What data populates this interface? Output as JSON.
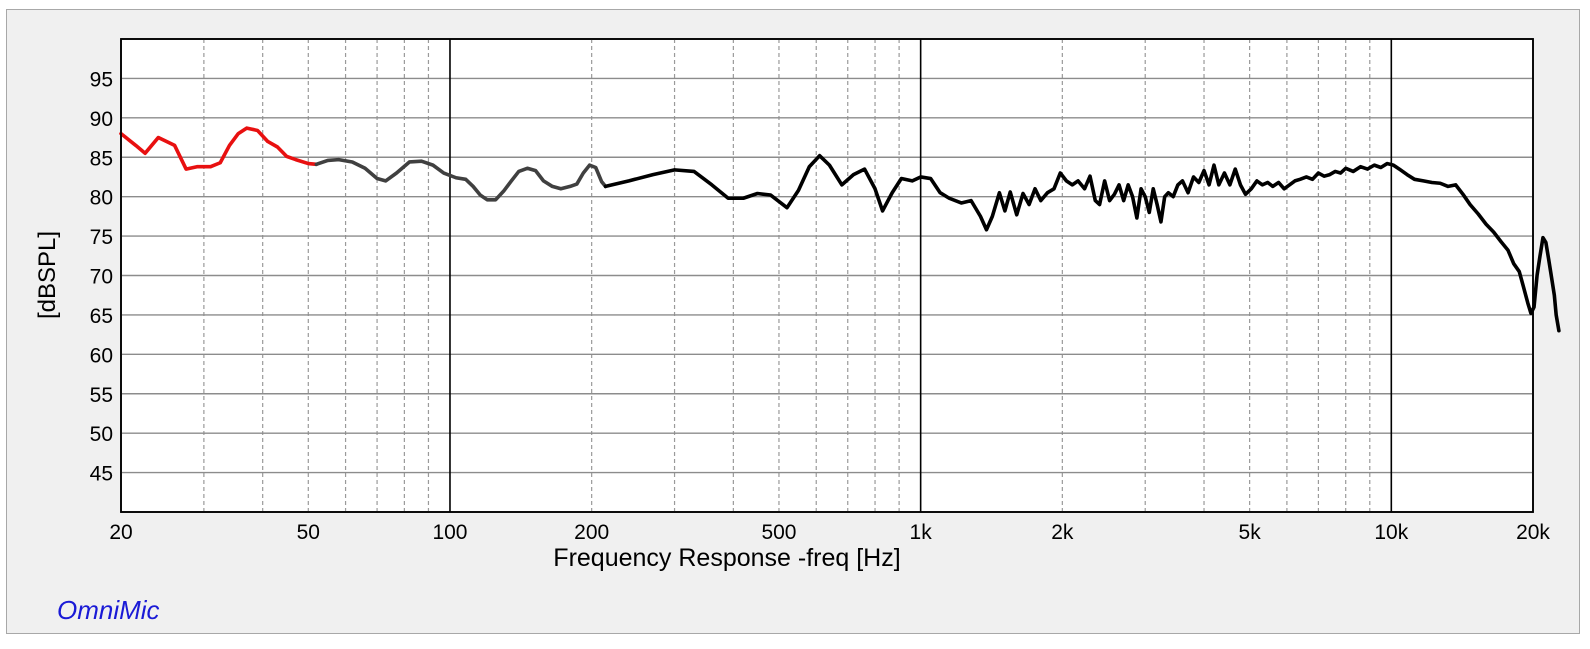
{
  "chart_data": {
    "type": "line",
    "title": "",
    "xlabel": "Frequency Response -freq [Hz]",
    "ylabel": "[dBSPL]",
    "x_scale": "log",
    "xlim": [
      20,
      20000
    ],
    "ylim": [
      40,
      100
    ],
    "x_ticks": [
      {
        "value": 20,
        "label": "20"
      },
      {
        "value": 50,
        "label": "50"
      },
      {
        "value": 100,
        "label": "100"
      },
      {
        "value": 200,
        "label": "200"
      },
      {
        "value": 500,
        "label": "500"
      },
      {
        "value": 1000,
        "label": "1k"
      },
      {
        "value": 2000,
        "label": "2k"
      },
      {
        "value": 5000,
        "label": "5k"
      },
      {
        "value": 10000,
        "label": "10k"
      },
      {
        "value": 20000,
        "label": "20k"
      }
    ],
    "y_ticks": [
      45,
      50,
      55,
      60,
      65,
      70,
      75,
      80,
      85,
      90,
      95
    ],
    "grid": true,
    "series": [
      {
        "color": "#e81010",
        "points": [
          [
            20,
            88
          ],
          [
            21.5,
            86.5
          ],
          [
            22.5,
            85.5
          ],
          [
            24,
            87.5
          ],
          [
            26,
            86.5
          ],
          [
            27.5,
            83.5
          ],
          [
            29,
            83.8
          ],
          [
            31,
            83.8
          ],
          [
            32.5,
            84.3
          ],
          [
            34,
            86.5
          ],
          [
            35.5,
            88
          ],
          [
            37,
            88.7
          ],
          [
            39,
            88.4
          ],
          [
            41,
            87
          ],
          [
            43,
            86.3
          ],
          [
            45,
            85.1
          ],
          [
            47,
            84.7
          ],
          [
            50,
            84.2
          ],
          [
            52,
            84.1
          ]
        ]
      },
      {
        "color": "#404040",
        "points": [
          [
            52,
            84.1
          ],
          [
            55,
            84.6
          ],
          [
            58,
            84.7
          ],
          [
            62,
            84.4
          ],
          [
            66,
            83.6
          ],
          [
            70,
            82.3
          ],
          [
            73,
            82
          ],
          [
            77,
            83
          ],
          [
            82,
            84.4
          ],
          [
            87,
            84.5
          ],
          [
            92,
            84
          ],
          [
            97,
            83
          ],
          [
            103,
            82.4
          ],
          [
            108,
            82.2
          ],
          [
            112,
            81.3
          ],
          [
            116,
            80.2
          ],
          [
            120,
            79.6
          ],
          [
            125,
            79.6
          ],
          [
            130,
            80.7
          ],
          [
            135,
            82
          ],
          [
            140,
            83.2
          ],
          [
            146,
            83.6
          ],
          [
            152,
            83.3
          ],
          [
            158,
            82
          ],
          [
            165,
            81.3
          ],
          [
            172,
            81
          ],
          [
            180,
            81.3
          ],
          [
            186,
            81.6
          ],
          [
            192,
            83
          ],
          [
            198,
            84
          ],
          [
            204,
            83.7
          ],
          [
            210,
            81.9
          ],
          [
            214,
            81.3
          ]
        ]
      },
      {
        "color": "#000000",
        "points": [
          [
            214,
            81.3
          ],
          [
            240,
            82
          ],
          [
            270,
            82.8
          ],
          [
            300,
            83.4
          ],
          [
            330,
            83.2
          ],
          [
            360,
            81.5
          ],
          [
            390,
            79.8
          ],
          [
            420,
            79.8
          ],
          [
            450,
            80.4
          ],
          [
            480,
            80.2
          ],
          [
            520,
            78.6
          ],
          [
            550,
            80.8
          ],
          [
            580,
            83.8
          ],
          [
            610,
            85.2
          ],
          [
            640,
            84
          ],
          [
            680,
            81.5
          ],
          [
            720,
            82.8
          ],
          [
            760,
            83.5
          ],
          [
            800,
            81
          ],
          [
            830,
            78.2
          ],
          [
            870,
            80.5
          ],
          [
            910,
            82.3
          ],
          [
            960,
            82
          ],
          [
            1000,
            82.5
          ],
          [
            1050,
            82.3
          ],
          [
            1100,
            80.5
          ],
          [
            1150,
            79.8
          ],
          [
            1220,
            79.2
          ],
          [
            1280,
            79.5
          ],
          [
            1340,
            77.5
          ],
          [
            1380,
            75.8
          ],
          [
            1420,
            77.5
          ],
          [
            1470,
            80.5
          ],
          [
            1510,
            78.2
          ],
          [
            1550,
            80.6
          ],
          [
            1600,
            77.7
          ],
          [
            1650,
            80.4
          ],
          [
            1700,
            79
          ],
          [
            1750,
            81
          ],
          [
            1800,
            79.5
          ],
          [
            1860,
            80.5
          ],
          [
            1920,
            81
          ],
          [
            1980,
            83
          ],
          [
            2040,
            82
          ],
          [
            2100,
            81.5
          ],
          [
            2160,
            82
          ],
          [
            2230,
            81
          ],
          [
            2290,
            82.6
          ],
          [
            2350,
            79.5
          ],
          [
            2400,
            79
          ],
          [
            2460,
            82
          ],
          [
            2520,
            79.5
          ],
          [
            2580,
            80.3
          ],
          [
            2640,
            81.5
          ],
          [
            2700,
            79.5
          ],
          [
            2760,
            81.5
          ],
          [
            2820,
            80
          ],
          [
            2880,
            77.3
          ],
          [
            2940,
            81
          ],
          [
            3000,
            80
          ],
          [
            3060,
            78
          ],
          [
            3120,
            81
          ],
          [
            3180,
            79
          ],
          [
            3240,
            76.8
          ],
          [
            3300,
            80
          ],
          [
            3360,
            80.5
          ],
          [
            3440,
            80
          ],
          [
            3520,
            81.5
          ],
          [
            3600,
            82
          ],
          [
            3700,
            80.5
          ],
          [
            3800,
            82.5
          ],
          [
            3900,
            81.8
          ],
          [
            4000,
            83.3
          ],
          [
            4100,
            81.5
          ],
          [
            4200,
            84
          ],
          [
            4300,
            81.5
          ],
          [
            4420,
            83
          ],
          [
            4540,
            81.5
          ],
          [
            4660,
            83.5
          ],
          [
            4780,
            81.5
          ],
          [
            4900,
            80.3
          ],
          [
            5040,
            81
          ],
          [
            5180,
            82
          ],
          [
            5320,
            81.5
          ],
          [
            5460,
            81.8
          ],
          [
            5600,
            81.3
          ],
          [
            5760,
            81.8
          ],
          [
            5920,
            81
          ],
          [
            6080,
            81.5
          ],
          [
            6240,
            82
          ],
          [
            6400,
            82.2
          ],
          [
            6600,
            82.5
          ],
          [
            6800,
            82.2
          ],
          [
            7000,
            83
          ],
          [
            7200,
            82.6
          ],
          [
            7400,
            82.8
          ],
          [
            7600,
            83.2
          ],
          [
            7800,
            83
          ],
          [
            8000,
            83.6
          ],
          [
            8300,
            83.2
          ],
          [
            8600,
            83.8
          ],
          [
            8900,
            83.5
          ],
          [
            9200,
            84
          ],
          [
            9500,
            83.7
          ],
          [
            9800,
            84.2
          ],
          [
            10100,
            84
          ],
          [
            10400,
            83.5
          ],
          [
            10800,
            82.8
          ],
          [
            11200,
            82.2
          ],
          [
            11700,
            82
          ],
          [
            12200,
            81.8
          ],
          [
            12700,
            81.7
          ],
          [
            13200,
            81.3
          ],
          [
            13700,
            81.5
          ],
          [
            14200,
            80.3
          ],
          [
            14700,
            79
          ],
          [
            15300,
            77.8
          ],
          [
            15900,
            76.5
          ],
          [
            16500,
            75.5
          ],
          [
            17100,
            74.3
          ],
          [
            17700,
            73.2
          ],
          [
            18200,
            71.5
          ],
          [
            18700,
            70.5
          ],
          [
            19100,
            68.5
          ],
          [
            19500,
            66.5
          ],
          [
            19800,
            65.2
          ],
          [
            20100,
            66
          ],
          [
            20400,
            70
          ],
          [
            20700,
            72.5
          ],
          [
            21000,
            74.8
          ],
          [
            21300,
            74.2
          ],
          [
            21600,
            72
          ],
          [
            21800,
            70.5
          ],
          [
            22000,
            69
          ],
          [
            22200,
            67.5
          ],
          [
            22400,
            65
          ],
          [
            22700,
            63
          ]
        ]
      }
    ]
  },
  "brand": {
    "text": "OmniMic"
  }
}
